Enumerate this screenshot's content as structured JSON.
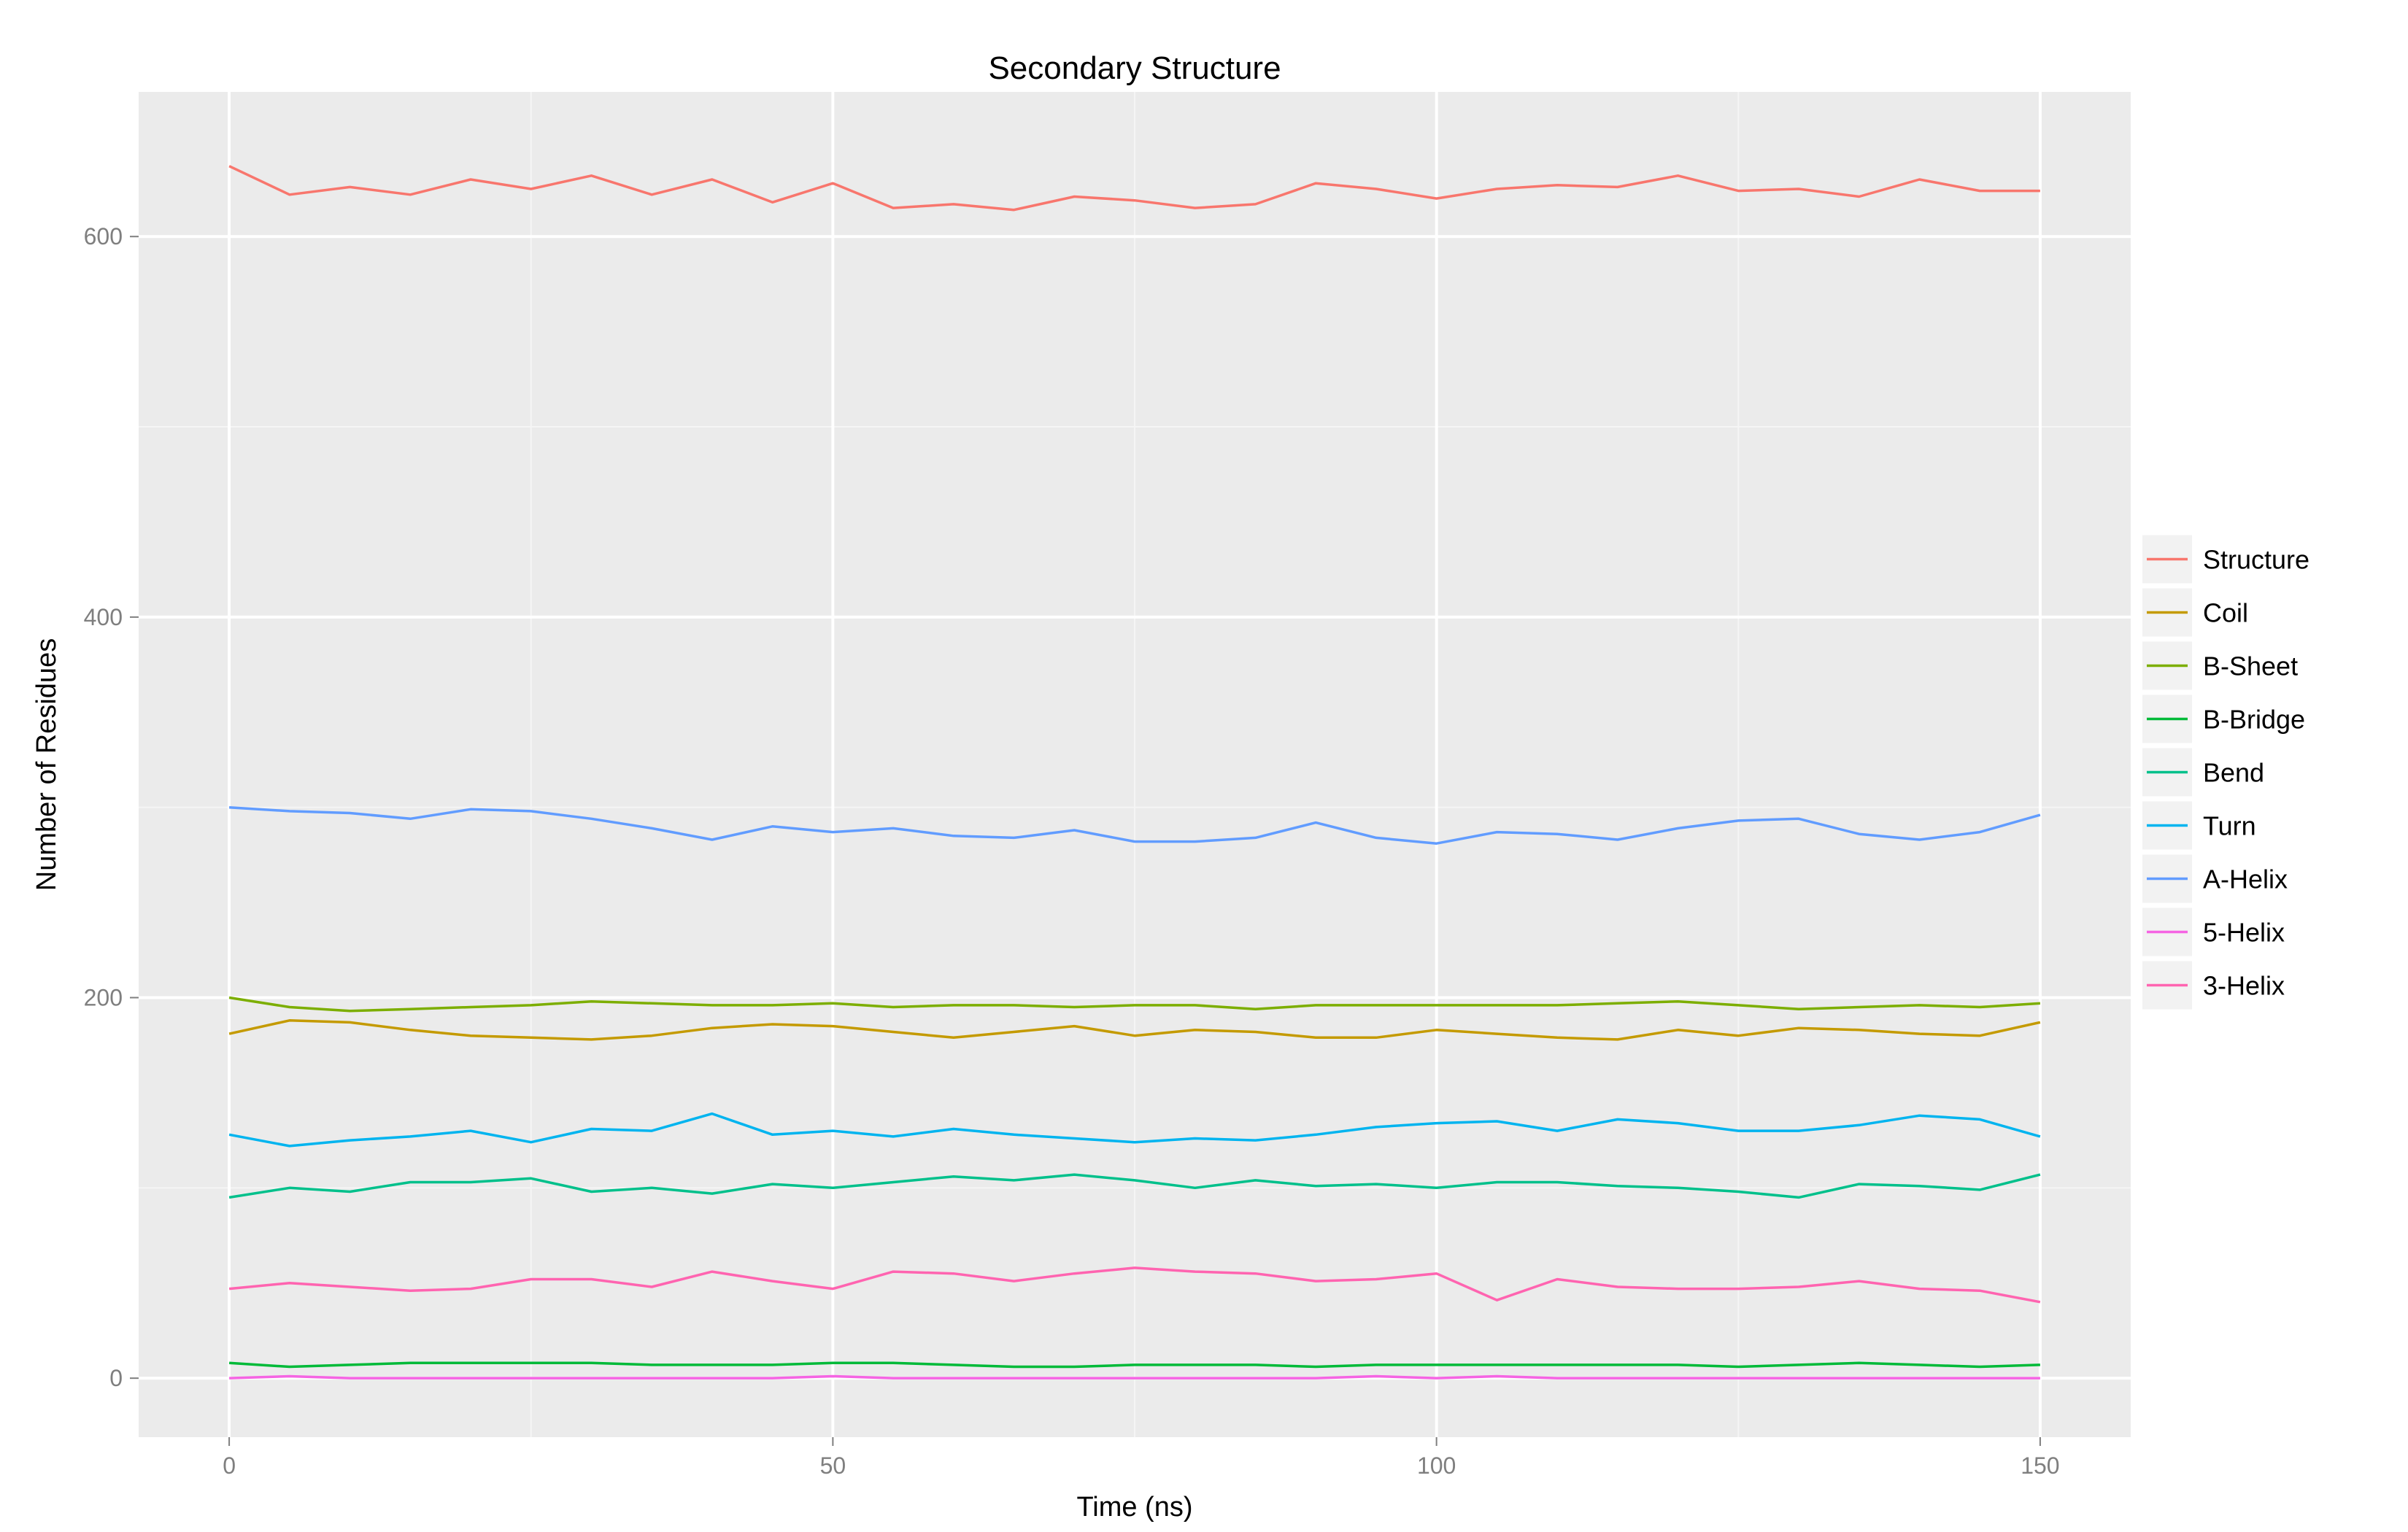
{
  "chart_data": {
    "type": "line",
    "title": "Secondary Structure",
    "xlabel": "Time (ns)",
    "ylabel": "Number of Residues",
    "xlim": [
      -7.5,
      157.5
    ],
    "ylim": [
      -31,
      676
    ],
    "x_ticks": [
      0,
      50,
      100,
      150
    ],
    "x_minor_ticks": [
      25,
      75,
      125
    ],
    "y_ticks": [
      0,
      200,
      400,
      600
    ],
    "y_minor_ticks": [
      100,
      300,
      500
    ],
    "grid": true,
    "legend_position": "right",
    "panel_background": "#ebebeb",
    "x": [
      0,
      5,
      10,
      15,
      20,
      25,
      30,
      35,
      40,
      45,
      50,
      55,
      60,
      65,
      70,
      75,
      80,
      85,
      90,
      95,
      100,
      105,
      110,
      115,
      120,
      125,
      130,
      135,
      140,
      145,
      150
    ],
    "series": [
      {
        "name": "Structure",
        "color": "#F8766D",
        "values": [
          637,
          622,
          626,
          622,
          630,
          625,
          632,
          622,
          630,
          618,
          628,
          615,
          617,
          614,
          621,
          619,
          615,
          617,
          628,
          625,
          620,
          625,
          627,
          626,
          632,
          624,
          625,
          621,
          630,
          624,
          624
        ]
      },
      {
        "name": "Coil",
        "color": "#C49A00",
        "values": [
          181,
          188,
          187,
          183,
          180,
          179,
          178,
          180,
          184,
          186,
          185,
          182,
          179,
          182,
          185,
          180,
          183,
          182,
          179,
          179,
          183,
          181,
          179,
          178,
          183,
          180,
          184,
          183,
          181,
          180,
          187
        ]
      },
      {
        "name": "B-Sheet",
        "color": "#7CAE00",
        "values": [
          200,
          195,
          193,
          194,
          195,
          196,
          198,
          197,
          196,
          196,
          197,
          195,
          196,
          196,
          195,
          196,
          196,
          194,
          196,
          196,
          196,
          196,
          196,
          197,
          198,
          196,
          194,
          195,
          196,
          195,
          197
        ]
      },
      {
        "name": "B-Bridge",
        "color": "#00BA38",
        "values": [
          8,
          6,
          7,
          8,
          8,
          8,
          8,
          7,
          7,
          7,
          8,
          8,
          7,
          6,
          6,
          7,
          7,
          7,
          6,
          7,
          7,
          7,
          7,
          7,
          7,
          6,
          7,
          8,
          7,
          6,
          7
        ]
      },
      {
        "name": "Bend",
        "color": "#00C08B",
        "values": [
          95,
          100,
          98,
          103,
          103,
          105,
          98,
          100,
          97,
          102,
          100,
          103,
          106,
          104,
          107,
          104,
          100,
          104,
          101,
          102,
          100,
          103,
          103,
          101,
          100,
          98,
          95,
          102,
          101,
          99,
          107
        ]
      },
      {
        "name": "Turn",
        "color": "#00B4EF",
        "values": [
          128,
          122,
          125,
          127,
          130,
          124,
          131,
          130,
          139,
          128,
          130,
          127,
          131,
          128,
          126,
          124,
          126,
          125,
          128,
          132,
          134,
          135,
          130,
          136,
          134,
          130,
          130,
          133,
          138,
          136,
          127
        ]
      },
      {
        "name": "A-Helix",
        "color": "#619CFF",
        "values": [
          300,
          298,
          297,
          294,
          299,
          298,
          294,
          289,
          283,
          290,
          287,
          289,
          285,
          284,
          288,
          282,
          282,
          284,
          292,
          284,
          281,
          287,
          286,
          283,
          289,
          293,
          294,
          286,
          283,
          287,
          296
        ]
      },
      {
        "name": "5-Helix",
        "color": "#F564E3",
        "values": [
          0,
          1,
          0,
          0,
          0,
          0,
          0,
          0,
          0,
          0,
          1,
          0,
          0,
          0,
          0,
          0,
          0,
          0,
          0,
          1,
          0,
          1,
          0,
          0,
          0,
          0,
          0,
          0,
          0,
          0,
          0
        ]
      },
      {
        "name": "3-Helix",
        "color": "#FF64B0",
        "values": [
          47,
          50,
          48,
          46,
          47,
          52,
          52,
          48,
          56,
          51,
          47,
          56,
          55,
          51,
          55,
          58,
          56,
          55,
          51,
          52,
          55,
          41,
          52,
          48,
          47,
          47,
          48,
          51,
          47,
          46,
          40
        ]
      }
    ]
  }
}
